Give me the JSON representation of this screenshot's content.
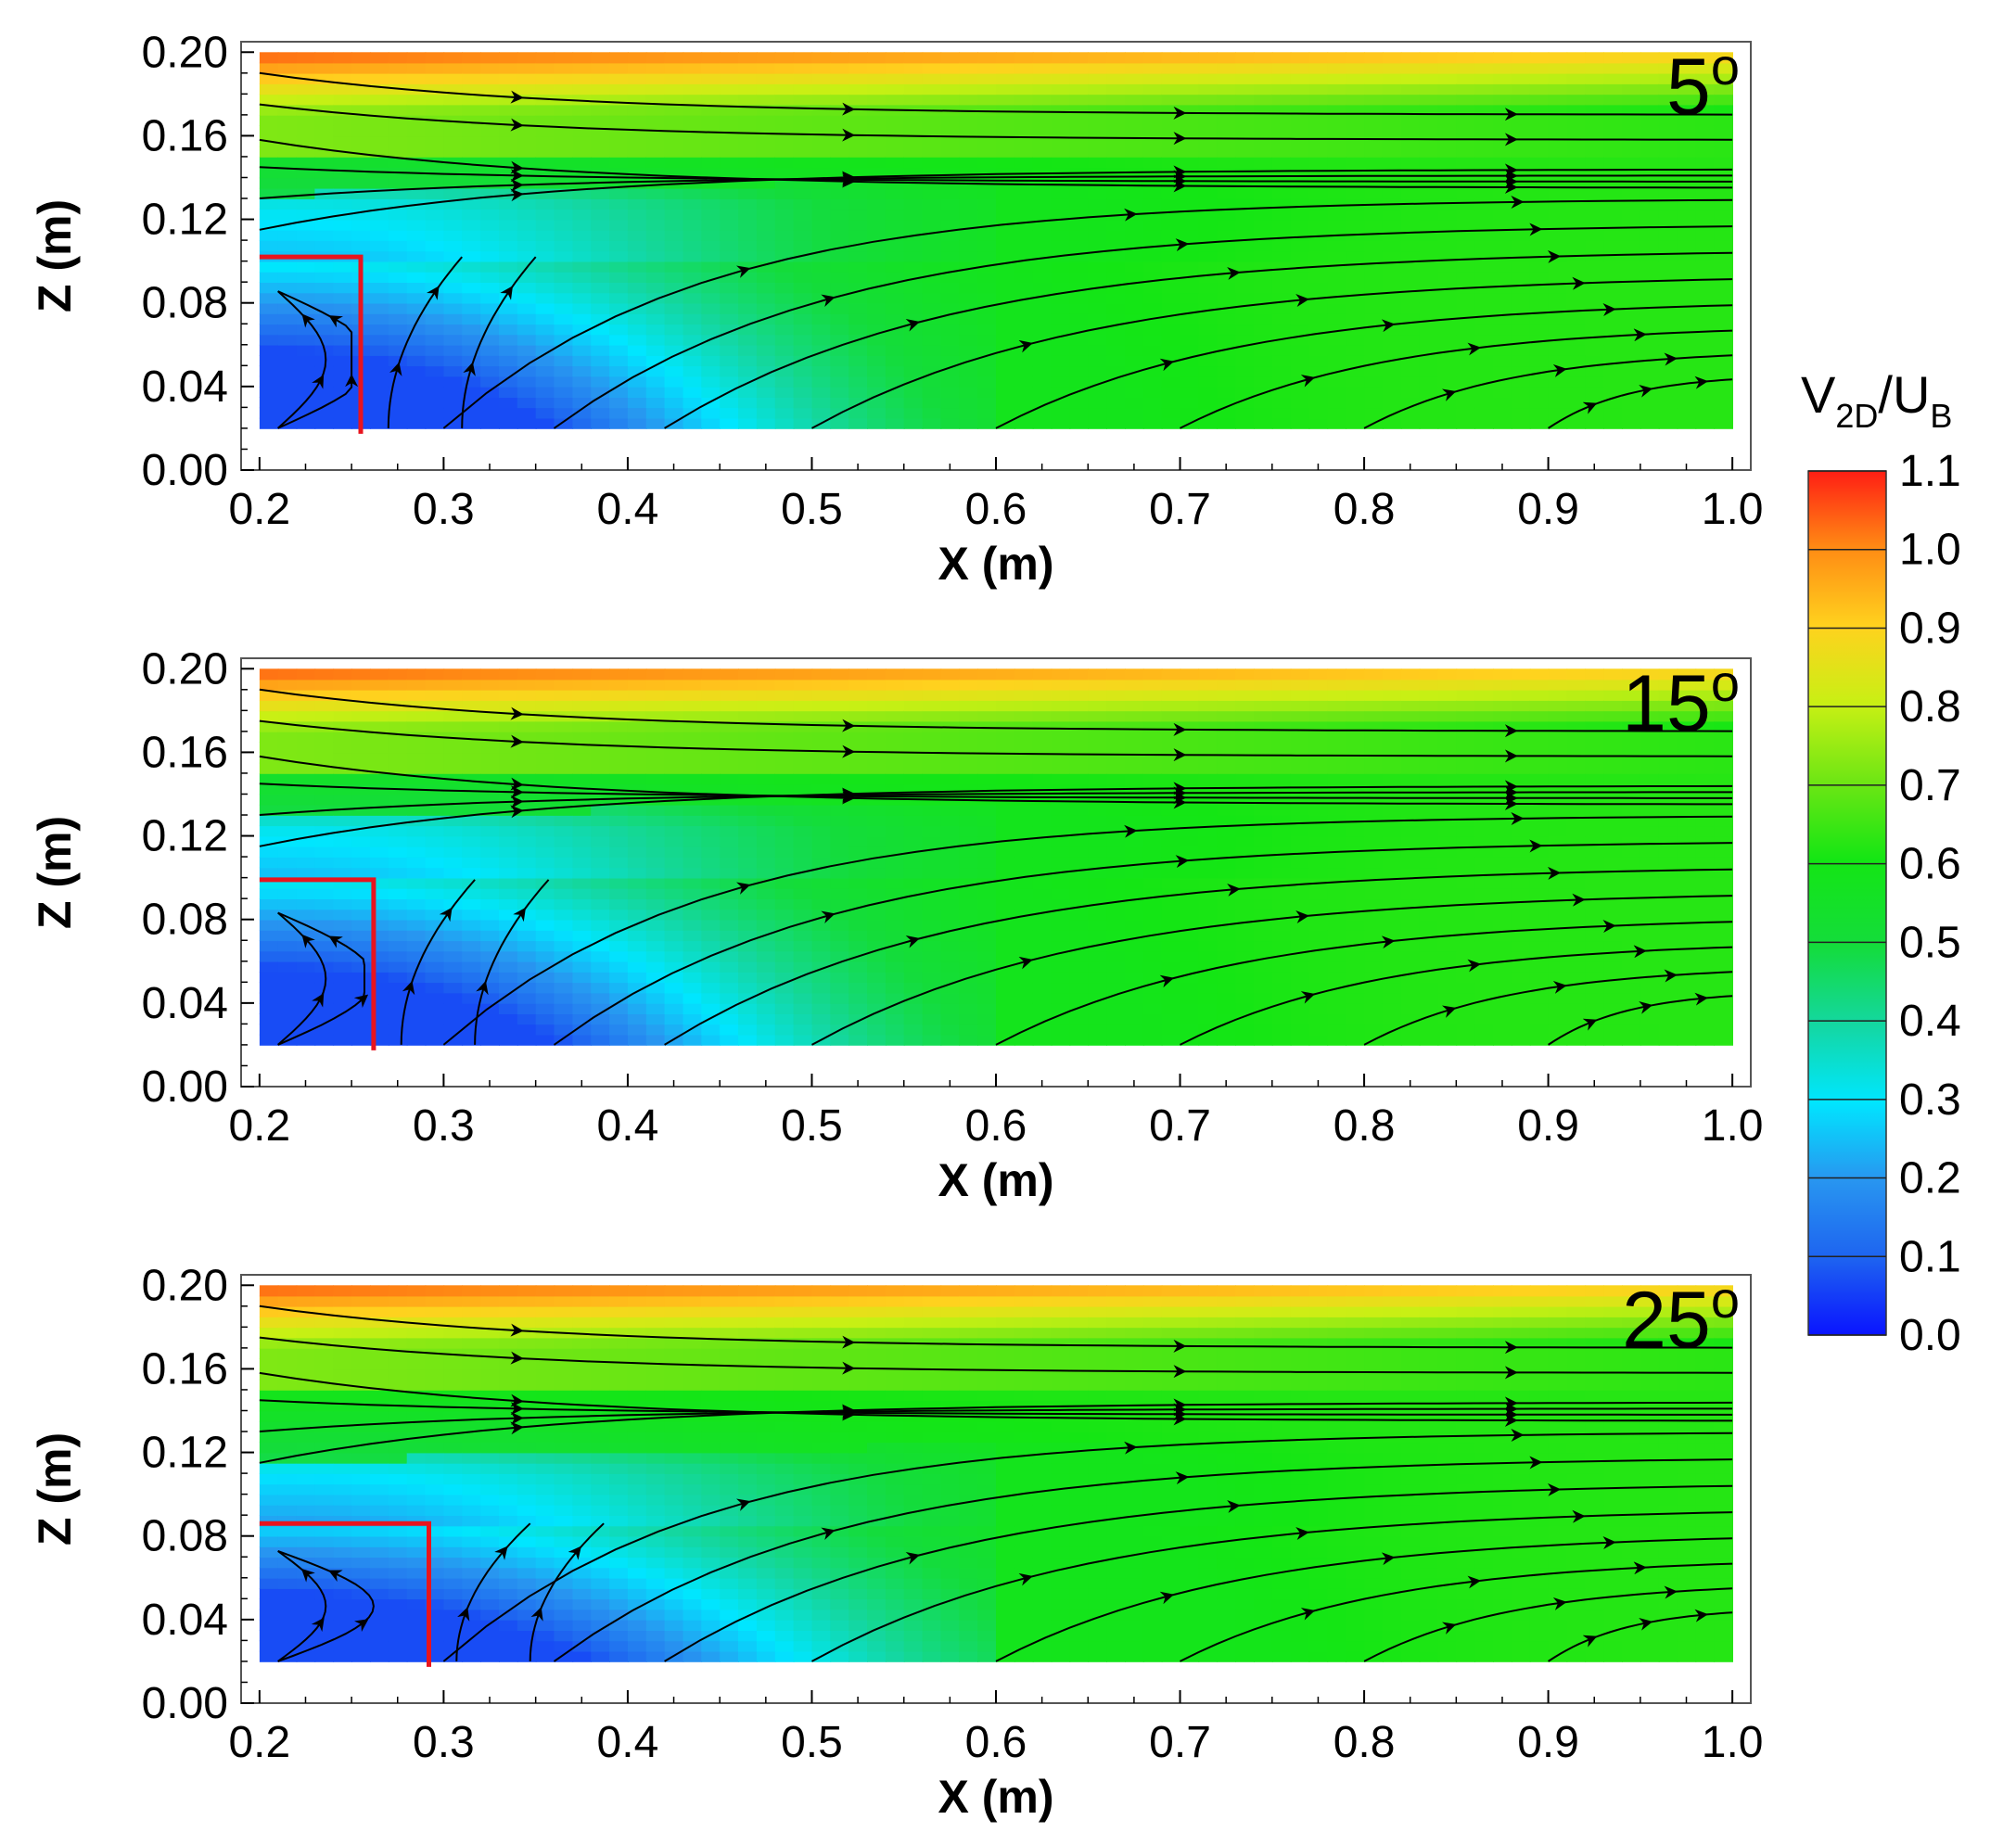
{
  "chart_data": [
    {
      "type": "contour",
      "panel": "5°",
      "angle_value": "5",
      "angle_sup": "o",
      "xlabel": "X (m)",
      "ylabel": "Z (m)",
      "xlim": [
        0.19,
        1.01
      ],
      "ylim": [
        0.0,
        0.205
      ],
      "xticks": [
        "0.2",
        "0.3",
        "0.4",
        "0.5",
        "0.6",
        "0.7",
        "0.8",
        "0.9",
        "1.0"
      ],
      "yticks": [
        "0.00",
        "0.04",
        "0.08",
        "0.12",
        "0.16",
        "0.20"
      ],
      "field_extent": {
        "x": [
          0.2,
          1.0
        ],
        "z": [
          0.02,
          0.2
        ]
      },
      "obstacle": {
        "x": [
          0.2,
          0.255
        ],
        "z_top": 0.102,
        "color": "#e8141e"
      },
      "streamlines": 19
    },
    {
      "type": "contour",
      "panel": "15°",
      "angle_value": "15",
      "angle_sup": "o",
      "xlabel": "X (m)",
      "ylabel": "Z (m)",
      "xlim": [
        0.19,
        1.01
      ],
      "ylim": [
        0.0,
        0.205
      ],
      "xticks": [
        "0.2",
        "0.3",
        "0.4",
        "0.5",
        "0.6",
        "0.7",
        "0.8",
        "0.9",
        "1.0"
      ],
      "yticks": [
        "0.00",
        "0.04",
        "0.08",
        "0.12",
        "0.16",
        "0.20"
      ],
      "field_extent": {
        "x": [
          0.2,
          1.0
        ],
        "z": [
          0.02,
          0.2
        ]
      },
      "obstacle": {
        "x": [
          0.2,
          0.262
        ],
        "z_top": 0.099,
        "color": "#e8141e"
      },
      "streamlines": 19
    },
    {
      "type": "contour",
      "panel": "25°",
      "angle_value": "25",
      "angle_sup": "o",
      "xlabel": "X (m)",
      "ylabel": "Z (m)",
      "xlim": [
        0.19,
        1.01
      ],
      "ylim": [
        0.0,
        0.205
      ],
      "xticks": [
        "0.2",
        "0.3",
        "0.4",
        "0.5",
        "0.6",
        "0.7",
        "0.8",
        "0.9",
        "1.0"
      ],
      "yticks": [
        "0.00",
        "0.04",
        "0.08",
        "0.12",
        "0.16",
        "0.20"
      ],
      "field_extent": {
        "x": [
          0.2,
          1.0
        ],
        "z": [
          0.02,
          0.2
        ]
      },
      "obstacle": {
        "x": [
          0.2,
          0.292
        ],
        "z_top": 0.086,
        "color": "#e8141e"
      },
      "streamlines": 19
    }
  ],
  "colorbar": {
    "title_main": "V",
    "title_sub": "2D",
    "title_sep": "/U",
    "title_sub2": "B",
    "range": [
      0.0,
      1.1
    ],
    "ticks": [
      "0.0",
      "0.1",
      "0.2",
      "0.3",
      "0.4",
      "0.5",
      "0.6",
      "0.7",
      "0.8",
      "0.9",
      "1.0",
      "1.1"
    ],
    "colors": [
      "#0a14ff",
      "#1e64f0",
      "#2896f0",
      "#00e6ff",
      "#14d7a0",
      "#14dc3c",
      "#14e614",
      "#6ee614",
      "#c8f014",
      "#ffd21e",
      "#ff8c14",
      "#ff1e14"
    ]
  }
}
